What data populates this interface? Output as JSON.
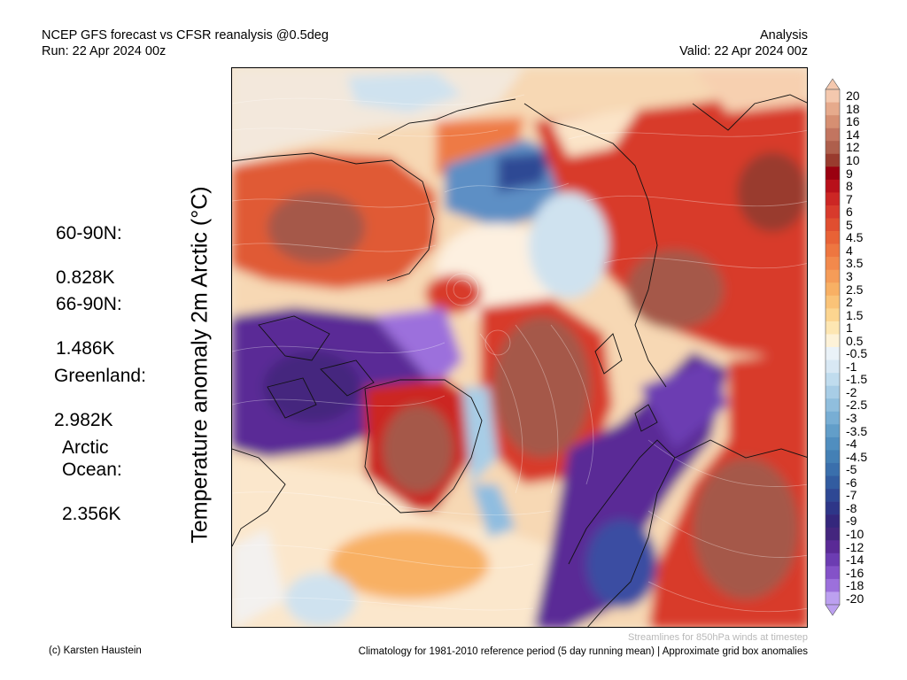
{
  "header": {
    "title_left": "NCEP GFS forecast vs CFSR reanalysis @0.5deg",
    "run": "Run: 22 Apr 2024 00z",
    "title_right": "Analysis",
    "valid": "Valid: 22 Apr 2024 00z"
  },
  "axis_label": "Temperature anomaly 2m Arctic (°C)",
  "stats": [
    {
      "label": "60-90N:",
      "value": " 0.828K"
    },
    {
      "label": "66-90N:",
      "value": " 1.486K"
    },
    {
      "label": "Greenland:",
      "value": "  2.982K"
    },
    {
      "label": "Arctic\nOcean:",
      "value": "2.356K"
    }
  ],
  "colorbar": {
    "labels": [
      "20",
      "18",
      "16",
      "14",
      "12",
      "10",
      "9",
      "8",
      "7",
      "6",
      "5",
      "4.5",
      "4",
      "3.5",
      "3",
      "2.5",
      "2",
      "1.5",
      "1",
      "0.5",
      "-0.5",
      "-1",
      "-1.5",
      "-2",
      "-2.5",
      "-3",
      "-3.5",
      "-4",
      "-4.5",
      "-5",
      "-6",
      "-7",
      "-8",
      "-9",
      "-10",
      "-12",
      "-14",
      "-16",
      "-18",
      "-20"
    ],
    "colors": [
      "#f4c8ae",
      "#e6aa8c",
      "#d68f72",
      "#c27560",
      "#ae5f4c",
      "#993b2e",
      "#9a0010",
      "#b8101a",
      "#cc2624",
      "#d83a2c",
      "#e04e30",
      "#e86236",
      "#ee7640",
      "#f2894c",
      "#f59c58",
      "#f8b064",
      "#fac378",
      "#fcd590",
      "#fde6b2",
      "#fdf2d8",
      "#eaf2f8",
      "#d8e8f4",
      "#c0dcee",
      "#a8cde6",
      "#90bedd",
      "#78aed4",
      "#629ec9",
      "#508ebf",
      "#4480b5",
      "#3a6fac",
      "#325ca0",
      "#2e4894",
      "#2e3688",
      "#34277c",
      "#44267e",
      "#5a2a96",
      "#6c3cb2",
      "#8452c8",
      "#9c70dc",
      "#bca0f0"
    ]
  },
  "footer": {
    "credit": "(c) Karsten Haustein",
    "streamlines": "Streamlines for 850hPa winds at timestep",
    "climatology": "Climatology for 1981-2010 reference period (5 day running mean) | Approximate grid box anomalies"
  }
}
